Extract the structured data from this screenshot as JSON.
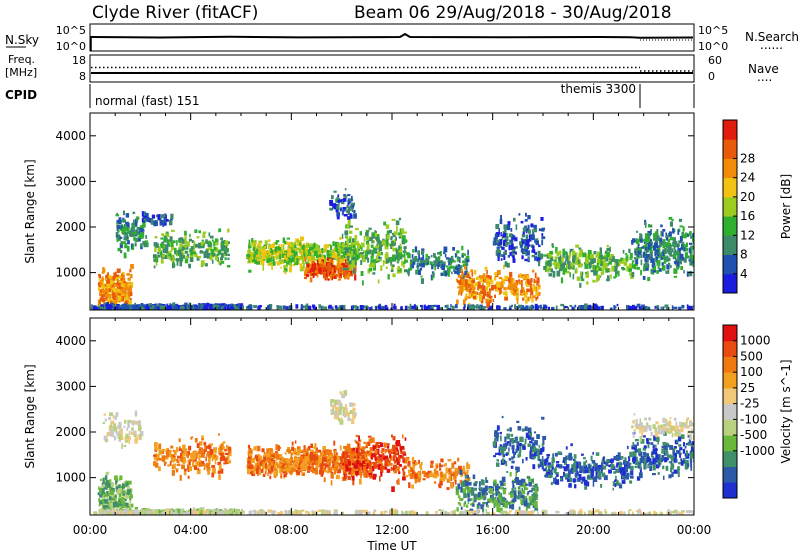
{
  "header": {
    "station": "Clyde River (fitACF)",
    "beam_range": "Beam 06  29/Aug/2018 - 30/Aug/2018"
  },
  "strip_nsky": {
    "left_label": "N.Sky",
    "left_top": "10^5",
    "left_bottom": "10^0",
    "right_top": "10^5",
    "right_bottom": "10^0",
    "right_label": "N.Search",
    "right_legend": "......"
  },
  "strip_freq": {
    "left_label_1": "Freq.",
    "left_label_2": "[MHz]",
    "left_top": "18",
    "left_bottom": "8",
    "right_top": "60",
    "right_bottom": "0",
    "right_label": "Nave",
    "right_legend": "...."
  },
  "strip_cpid": {
    "label": "CPID",
    "mode_1": "normal (fast) 151",
    "mode_2": "themis 3300"
  },
  "x_axis": {
    "label": "Time UT",
    "ticks": [
      "00:00",
      "04:00",
      "08:00",
      "12:00",
      "16:00",
      "20:00",
      "00:00"
    ]
  },
  "chart_data": [
    {
      "type": "heatmap",
      "name": "power",
      "ylabel": "Slant Range [km]",
      "yticks": [
        "1000",
        "2000",
        "3000",
        "4000"
      ],
      "ylim": [
        180,
        4500
      ],
      "xlim_hours": [
        0,
        24
      ],
      "colorbar": {
        "label": "Power [dB]",
        "ticks": [
          "4",
          "8",
          "12",
          "16",
          "20",
          "24",
          "28"
        ],
        "colors": [
          "#1c1ce0",
          "#2050b0",
          "#3d8a6a",
          "#2fae2f",
          "#9ccc1f",
          "#f2c310",
          "#f08c08",
          "#e85a0a",
          "#e01c0c"
        ]
      }
    },
    {
      "type": "heatmap",
      "name": "velocity",
      "ylabel": "Slant Range [km]",
      "yticks": [
        "1000",
        "2000",
        "3000",
        "4000"
      ],
      "ylim": [
        180,
        4500
      ],
      "xlim_hours": [
        0,
        24
      ],
      "colorbar": {
        "label": "Velocity [m s^-1]",
        "ticks": [
          "1000",
          "500",
          "100",
          "25",
          "-25",
          "-100",
          "-500",
          "-1000"
        ],
        "colors": [
          "#1f2fd0",
          "#2d5aa8",
          "#3f8f6a",
          "#6ab83a",
          "#b8d080",
          "#c8c8c8",
          "#f0c878",
          "#f2a020",
          "#f07a10",
          "#e84a10",
          "#e01010"
        ]
      }
    }
  ]
}
